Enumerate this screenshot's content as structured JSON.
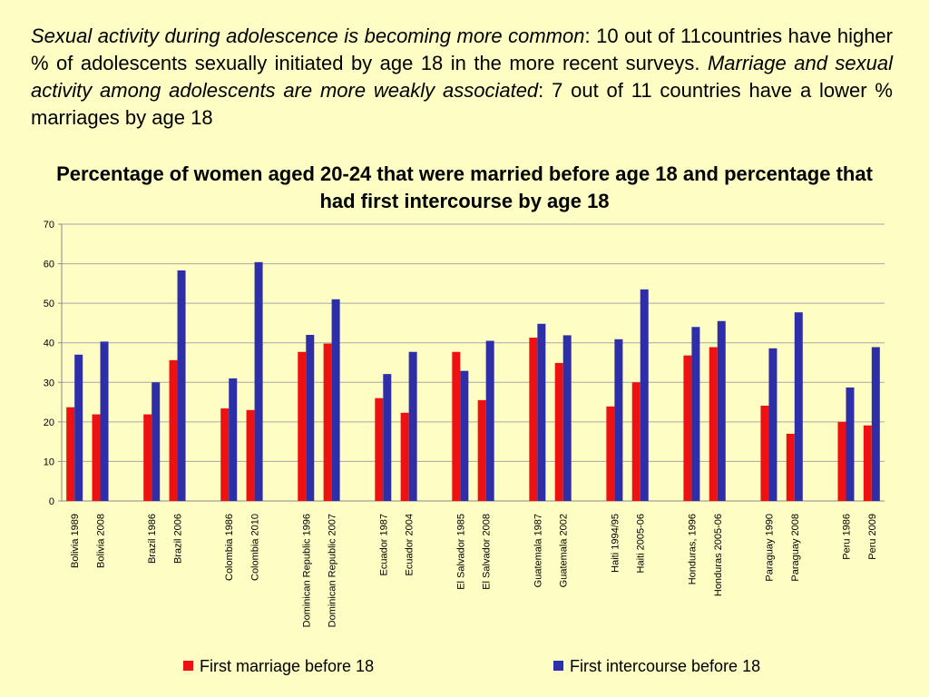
{
  "intro": {
    "part1_italic": "Sexual activity during adolescence is becoming more common",
    "part2": ": 10 out of 11countries have higher % of adolescents sexually initiated by age 18 in the more recent surveys. ",
    "part3_italic": "Marriage and sexual activity among adolescents are more weakly associated",
    "part4": ": 7 out of 11 countries have a lower % marriages by age 18"
  },
  "chart_data": {
    "type": "bar",
    "title": "Percentage of women aged 20-24 that were married before age 18 and percentage that had first intercourse by age 18",
    "xlabel": "",
    "ylabel": "",
    "ylim": [
      0,
      70
    ],
    "yticks": [
      0,
      10,
      20,
      30,
      40,
      50,
      60,
      70
    ],
    "grid": true,
    "legend_position": "bottom",
    "groups": [
      {
        "country": "Bolivia",
        "categories": [
          "Bolivia 1989",
          "Bolivia 2008"
        ]
      },
      {
        "country": "Brazil",
        "categories": [
          "Brazil 1986",
          "Brazil 2006"
        ]
      },
      {
        "country": "Colombia",
        "categories": [
          "Colombia 1986",
          "Colombia 2010"
        ]
      },
      {
        "country": "Dominican Republic",
        "categories": [
          "Dominican Republic 1996",
          "Dominican Republic 2007"
        ]
      },
      {
        "country": "Ecuador",
        "categories": [
          "Ecuador 1987",
          "Ecuador 2004"
        ]
      },
      {
        "country": "El Salvador",
        "categories": [
          "El Salvador 1985",
          "El Salvador 2008"
        ]
      },
      {
        "country": "Guatemala",
        "categories": [
          "Guatemala 1987",
          "Guatemala 2002"
        ]
      },
      {
        "country": "Haiti",
        "categories": [
          "Haiti 1994/95",
          "Haiti 2005-06"
        ]
      },
      {
        "country": "Honduras",
        "categories": [
          "Honduras,  1996",
          "Honduras 2005-06"
        ]
      },
      {
        "country": "Paraguay",
        "categories": [
          "Paraguay 1990",
          "Paraguay 2008"
        ]
      },
      {
        "country": "Peru",
        "categories": [
          "Peru 1986",
          "Peru 2009"
        ]
      }
    ],
    "series": [
      {
        "name": "First marriage before 18",
        "color": "#ee1111",
        "values": [
          23.7,
          21.9,
          21.9,
          35.6,
          23.4,
          23.0,
          37.7,
          39.8,
          26.0,
          22.3,
          37.7,
          25.5,
          41.3,
          34.9,
          23.9,
          30.0,
          36.8,
          38.9,
          24.1,
          17.0,
          20.0,
          19.1
        ]
      },
      {
        "name": "First intercourse before 18",
        "color": "#2e2ea8",
        "values": [
          37.0,
          40.3,
          30.0,
          58.3,
          31.0,
          60.4,
          42.0,
          51.0,
          32.1,
          37.7,
          32.9,
          40.5,
          44.8,
          41.9,
          40.9,
          53.5,
          44.0,
          45.5,
          38.6,
          47.7,
          28.7,
          38.9
        ]
      }
    ]
  }
}
